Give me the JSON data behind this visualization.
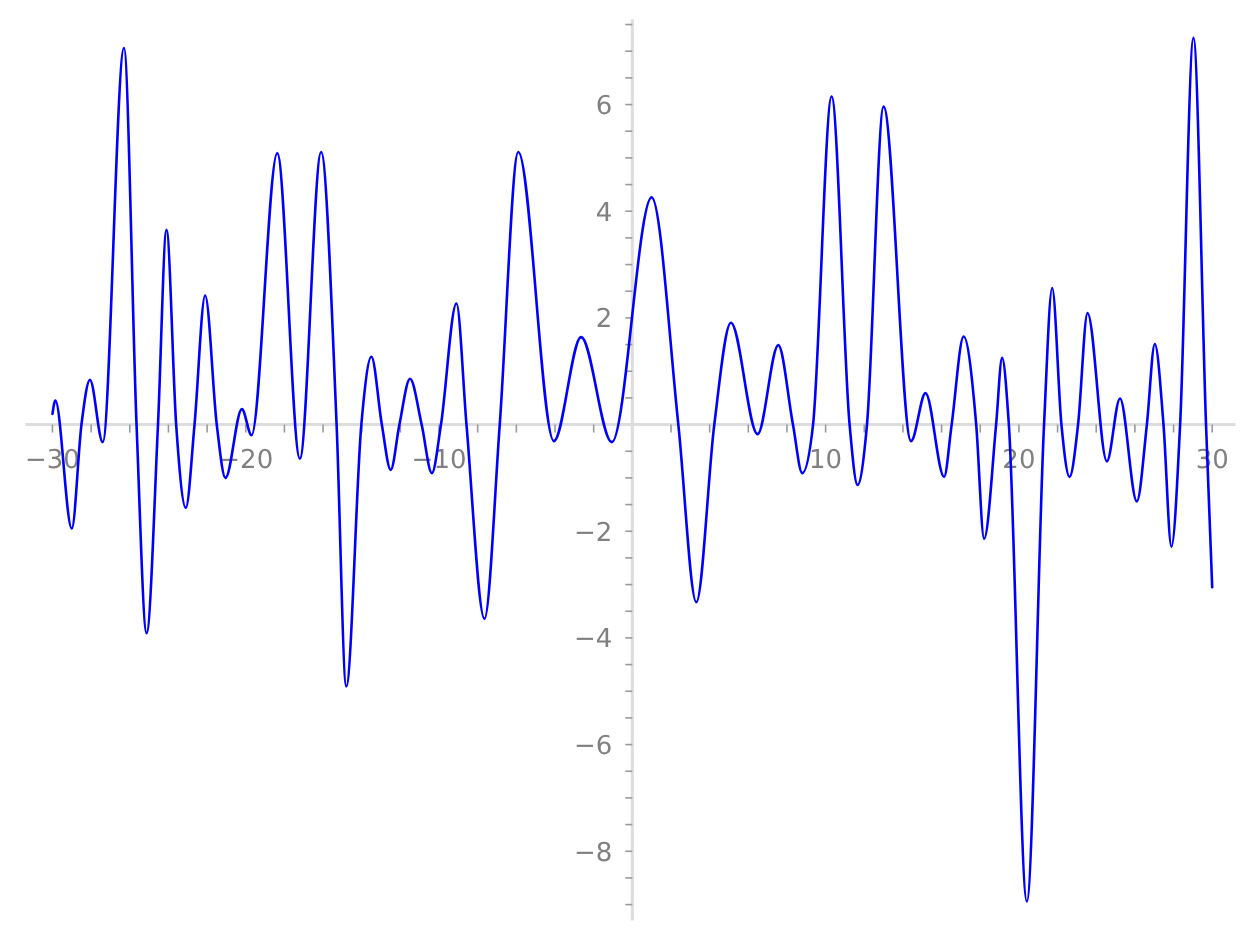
{
  "chart_data": {
    "type": "line",
    "x": [
      -30,
      -29.85,
      -29.0,
      -28.5,
      -28.06,
      -27.4,
      -26.3,
      -25.65,
      -25.13,
      -24.54,
      -24.1,
      -23.6,
      -23.1,
      -22.65,
      -22.1,
      -21.5,
      -21.05,
      -20.2,
      -19.7,
      -18.37,
      -17.2,
      -16.1,
      -15.3,
      -14.8,
      -14.02,
      -13.5,
      -12.96,
      -12.5,
      -12.05,
      -11.5,
      -10.9,
      -10.37,
      -9.9,
      -9.1,
      -8.58,
      -7.65,
      -6.86,
      -5.9,
      -4.06,
      -2.65,
      -1.06,
      1.0,
      2.38,
      3.31,
      4.24,
      5.1,
      6.48,
      7.55,
      8.31,
      8.79,
      9.35,
      10.31,
      11.24,
      11.65,
      12.14,
      13.0,
      14.42,
      15.17,
      16.13,
      16.52,
      17.14,
      17.79,
      18.2,
      18.82,
      19.13,
      19.48,
      20.41,
      21.3,
      21.72,
      22.2,
      22.62,
      23.06,
      23.55,
      24.55,
      25.23,
      26.1,
      26.62,
      27.03,
      27.48,
      27.89,
      28.34,
      29.03,
      29.68,
      30
    ],
    "series": [
      {
        "color": "#0000ff",
        "values": [
          0.2,
          0.45,
          -1.95,
          0,
          0.84,
          -0.33,
          7.06,
          0,
          -3.91,
          0,
          3.65,
          0,
          -1.56,
          0,
          2.42,
          0,
          -1.0,
          0.29,
          -0.2,
          5.09,
          -0.64,
          5.11,
          0,
          -4.91,
          0,
          1.27,
          0,
          -0.85,
          0,
          0.86,
          0,
          -0.91,
          0,
          2.27,
          0,
          -3.64,
          0,
          5.11,
          -0.31,
          1.64,
          -0.33,
          4.26,
          0,
          -3.33,
          0,
          1.91,
          -0.18,
          1.49,
          0,
          -0.91,
          0,
          6.15,
          0,
          -1.13,
          0,
          5.96,
          -0.31,
          0.59,
          -0.98,
          0,
          1.65,
          0,
          -2.14,
          0,
          1.25,
          0,
          -8.94,
          0,
          2.56,
          0,
          -0.98,
          0,
          2.09,
          -0.69,
          0.49,
          -1.44,
          0,
          1.51,
          0,
          -2.29,
          0,
          7.25,
          0,
          -3.05
        ]
      }
    ],
    "xlim": [
      -31.4,
      31.2
    ],
    "ylim": [
      -9.3,
      7.6
    ],
    "xticks": [
      {
        "value": -30,
        "label": "−30"
      },
      {
        "value": -28,
        "label": null
      },
      {
        "value": -26,
        "label": null
      },
      {
        "value": -24,
        "label": null
      },
      {
        "value": -22,
        "label": null
      },
      {
        "value": -20,
        "label": "−20"
      },
      {
        "value": -18,
        "label": null
      },
      {
        "value": -16,
        "label": null
      },
      {
        "value": -14,
        "label": null
      },
      {
        "value": -12,
        "label": null
      },
      {
        "value": -10,
        "label": "−10"
      },
      {
        "value": -8,
        "label": null
      },
      {
        "value": -6,
        "label": null
      },
      {
        "value": -4,
        "label": null
      },
      {
        "value": -2,
        "label": null
      },
      {
        "value": 2,
        "label": null
      },
      {
        "value": 4,
        "label": null
      },
      {
        "value": 6,
        "label": null
      },
      {
        "value": 8,
        "label": null
      },
      10,
      {
        "value": 12,
        "label": null
      },
      {
        "value": 14,
        "label": null
      },
      {
        "value": 16,
        "label": null
      },
      {
        "value": 18,
        "label": null
      },
      20,
      {
        "value": 22,
        "label": null
      },
      {
        "value": 24,
        "label": null
      },
      {
        "value": 26,
        "label": null
      },
      {
        "value": 28,
        "label": null
      },
      30
    ],
    "yticks": [
      {
        "value": -9,
        "label": null
      },
      {
        "value": -8.5,
        "label": null
      },
      {
        "value": -8,
        "label": "−8"
      },
      {
        "value": -7.5,
        "label": null
      },
      {
        "value": -7,
        "label": null
      },
      {
        "value": -6.5,
        "label": null
      },
      {
        "value": -6,
        "label": "−6"
      },
      {
        "value": -5.5,
        "label": null
      },
      {
        "value": -5,
        "label": null
      },
      {
        "value": -4.5,
        "label": null
      },
      {
        "value": -4,
        "label": "−4"
      },
      {
        "value": -3.5,
        "label": null
      },
      {
        "value": -3,
        "label": null
      },
      {
        "value": -2.5,
        "label": null
      },
      {
        "value": -2,
        "label": "−2"
      },
      {
        "value": -1.5,
        "label": null
      },
      {
        "value": -1,
        "label": null
      },
      {
        "value": -0.5,
        "label": null
      },
      {
        "value": 0.5,
        "label": null
      },
      {
        "value": 1,
        "label": null
      },
      {
        "value": 1.5,
        "label": null
      },
      2,
      {
        "value": 2.5,
        "label": null
      },
      {
        "value": 3,
        "label": null
      },
      {
        "value": 3.5,
        "label": null
      },
      4,
      {
        "value": 4.5,
        "label": null
      },
      {
        "value": 5,
        "label": null
      },
      {
        "value": 5.5,
        "label": null
      },
      6,
      {
        "value": 6.5,
        "label": null
      },
      {
        "value": 7,
        "label": null
      },
      {
        "value": 7.5,
        "label": null
      }
    ]
  }
}
